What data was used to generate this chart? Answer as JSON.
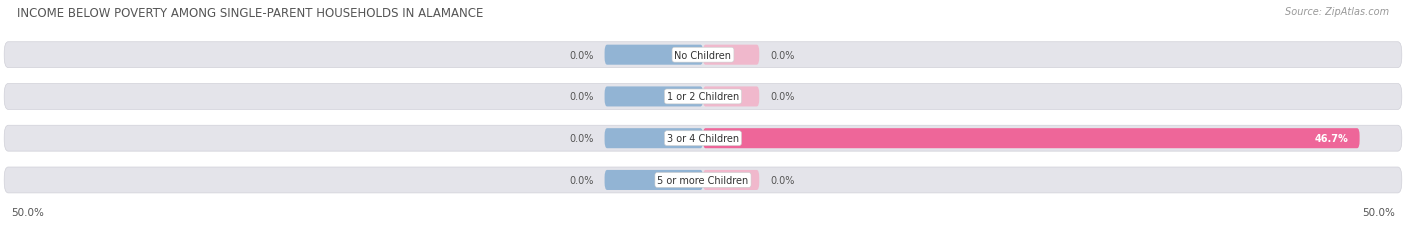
{
  "title": "INCOME BELOW POVERTY AMONG SINGLE-PARENT HOUSEHOLDS IN ALAMANCE",
  "source": "Source: ZipAtlas.com",
  "categories": [
    "No Children",
    "1 or 2 Children",
    "3 or 4 Children",
    "5 or more Children"
  ],
  "single_father": [
    0.0,
    0.0,
    0.0,
    0.0
  ],
  "single_mother": [
    0.0,
    0.0,
    46.7,
    0.0
  ],
  "axis_max": 50.0,
  "father_color": "#92b4d4",
  "mother_color_normal": "#f0b8cc",
  "mother_color_large": "#ee6699",
  "bar_bg_color": "#e4e4ea",
  "bar_bg_edge": "#d0d0d8",
  "title_fontsize": 8.5,
  "source_fontsize": 7,
  "label_fontsize": 7,
  "category_fontsize": 7,
  "legend_fontsize": 7.5,
  "axis_label_fontsize": 7.5,
  "father_stub_pct": 7.0,
  "mother_stub_pct": 4.0
}
